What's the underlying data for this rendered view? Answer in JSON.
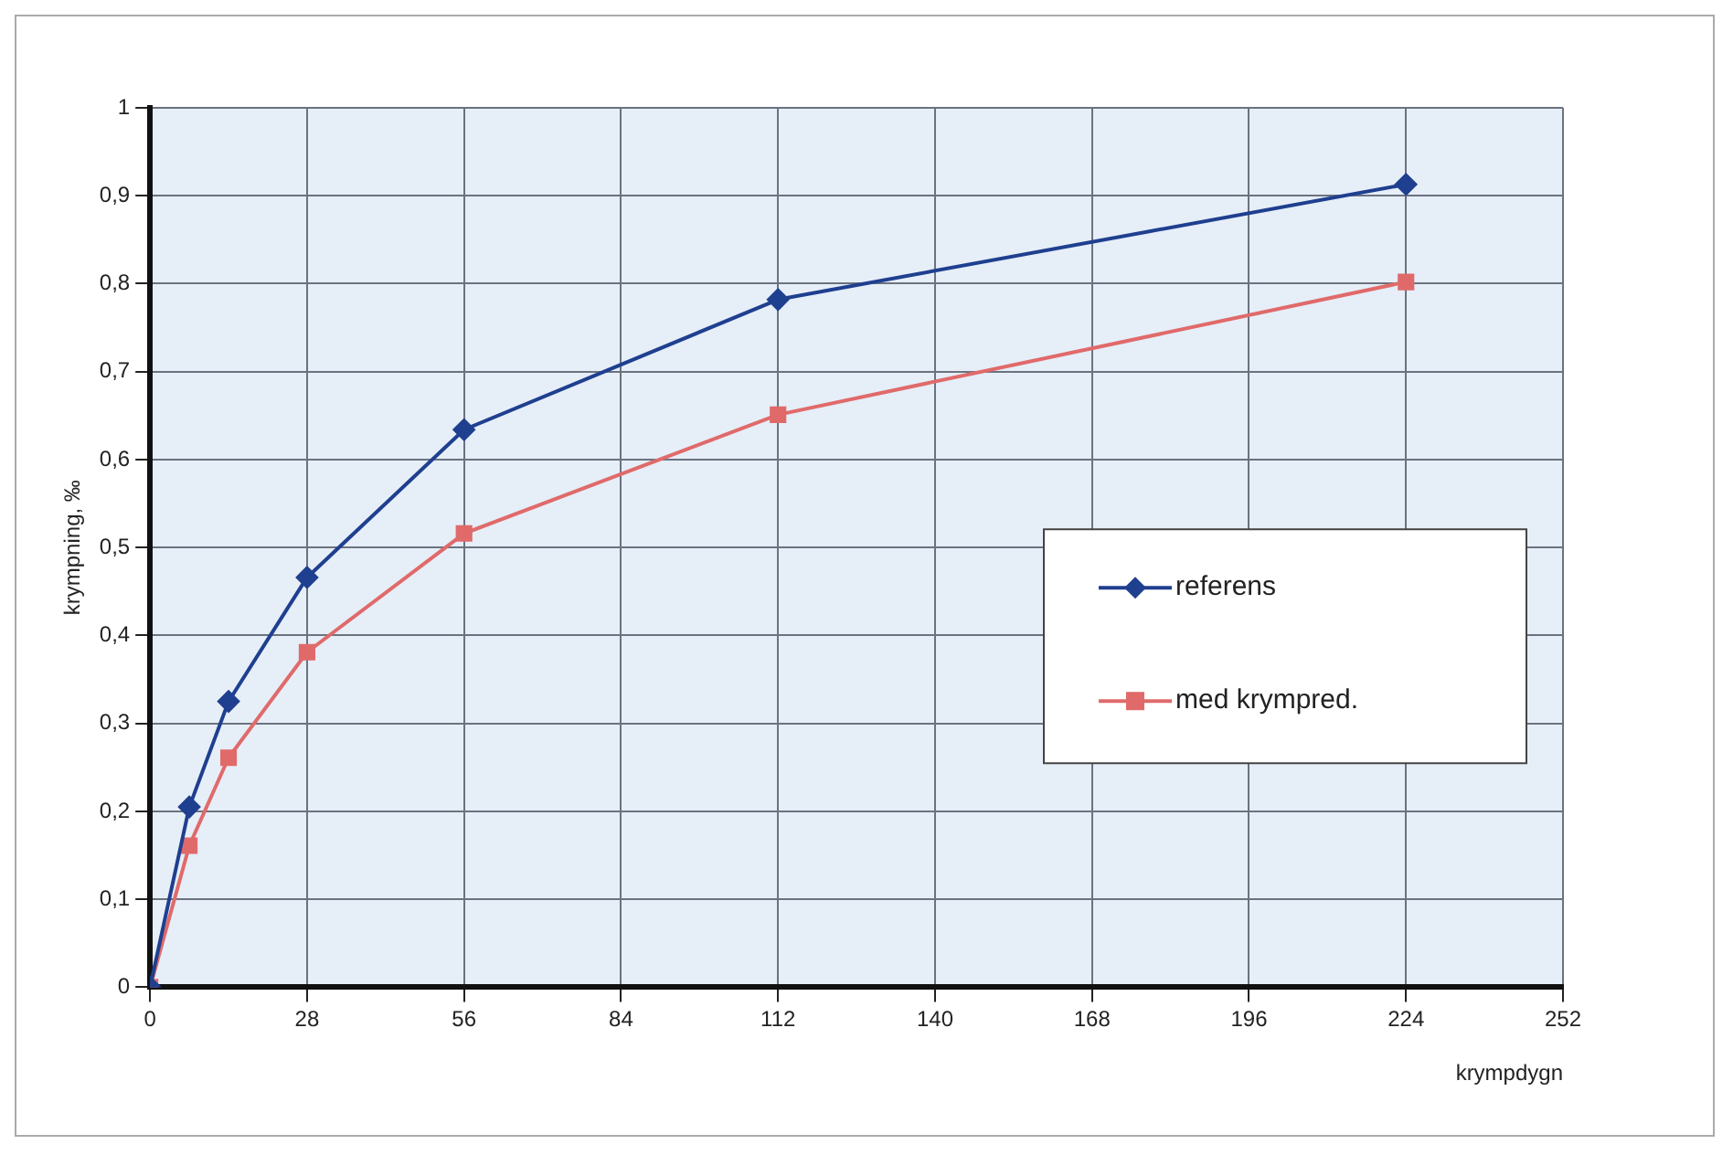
{
  "chart_data": {
    "type": "line",
    "xlabel": "krympdygn",
    "ylabel": "krympning, ‰",
    "x": [
      0,
      7,
      14,
      28,
      56,
      112,
      224
    ],
    "series": [
      {
        "name": "referens",
        "color": "#1f3f8f",
        "marker": "diamond",
        "values": [
          0,
          0.205,
          0.325,
          0.466,
          0.634,
          0.782,
          0.913
        ]
      },
      {
        "name": "med krympred.",
        "color": "#e06a6a",
        "marker": "square",
        "values": [
          0,
          0.161,
          0.261,
          0.381,
          0.516,
          0.651,
          0.802
        ]
      }
    ],
    "xlim": [
      0,
      252
    ],
    "xticks": [
      0,
      28,
      56,
      84,
      112,
      140,
      168,
      196,
      224,
      252
    ],
    "ylim": [
      0,
      1
    ],
    "yticks": [
      {
        "value": 0,
        "label": "0"
      },
      {
        "value": 0.1,
        "label": "0,1"
      },
      {
        "value": 0.2,
        "label": "0,2"
      },
      {
        "value": 0.3,
        "label": "0,3"
      },
      {
        "value": 0.4,
        "label": "0,4"
      },
      {
        "value": 0.5,
        "label": "0,5"
      },
      {
        "value": 0.6,
        "label": "0,6"
      },
      {
        "value": 0.7,
        "label": "0,7"
      },
      {
        "value": 0.8,
        "label": "0,8"
      },
      {
        "value": 0.9,
        "label": "0,9"
      },
      {
        "value": 1,
        "label": "1"
      }
    ],
    "grid": true,
    "legend": "right"
  }
}
